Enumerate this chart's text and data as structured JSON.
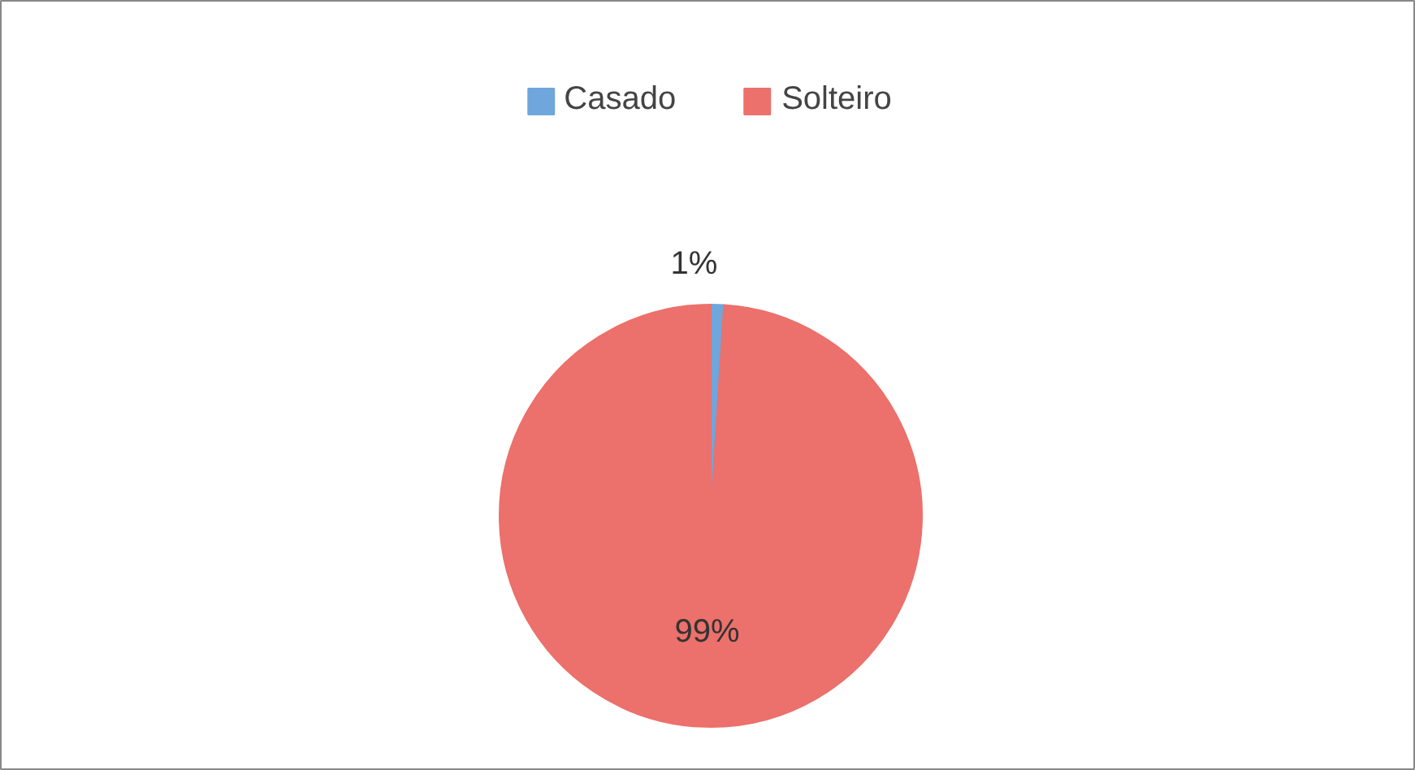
{
  "chart_data": {
    "type": "pie",
    "categories": [
      "Casado",
      "Solteiro"
    ],
    "values": [
      1,
      99
    ],
    "colors": [
      "#6fa6dc",
      "#ec706b"
    ],
    "value_labels": [
      "1%",
      "99%"
    ],
    "legend": "top"
  }
}
